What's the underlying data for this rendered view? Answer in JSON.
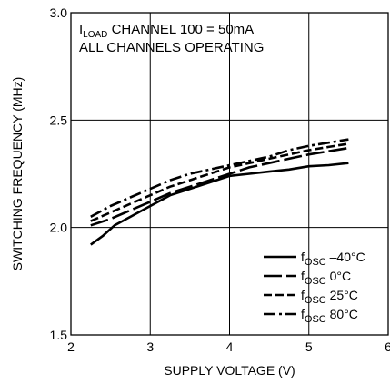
{
  "chart_data": {
    "type": "line",
    "title": "",
    "xlabel": "SUPPLY VOLTAGE (V)",
    "ylabel": "SWITCHING FREQUENCY (MHz)",
    "xlim": [
      2,
      6
    ],
    "ylim": [
      1.5,
      3.0
    ],
    "x_ticks": [
      "2",
      "3",
      "4",
      "5",
      "6"
    ],
    "y_ticks": [
      "1.5",
      "2.0",
      "2.5",
      "3.0"
    ],
    "grid": true,
    "legend_position": "bottom-right",
    "annotation": {
      "line1_main": "I",
      "line1_sub": "LOAD",
      "line1_rest": " CHANNEL 100 = 50mA",
      "line2": "ALL CHANNELS OPERATING"
    },
    "series": [
      {
        "name": "fOSC –40°C",
        "name_main": "f",
        "name_sub": "OSC",
        "name_rest": " –40°C",
        "dash": "solid",
        "x": [
          2.25,
          2.4,
          2.55,
          2.65,
          2.8,
          3.0,
          3.25,
          3.5,
          3.75,
          4.0,
          4.25,
          4.5,
          4.75,
          5.0,
          5.25,
          5.5
        ],
        "y": [
          1.92,
          1.96,
          2.01,
          2.03,
          2.06,
          2.1,
          2.15,
          2.18,
          2.21,
          2.24,
          2.25,
          2.26,
          2.27,
          2.285,
          2.29,
          2.3
        ]
      },
      {
        "name": "fOSC 0°C",
        "name_main": "f",
        "name_sub": "OSC",
        "name_rest": " 0°C",
        "dash": "long-dash",
        "x": [
          2.25,
          2.5,
          2.75,
          3.0,
          3.25,
          3.5,
          3.75,
          4.0,
          4.25,
          4.5,
          4.75,
          5.0,
          5.25,
          5.5
        ],
        "y": [
          2.01,
          2.04,
          2.08,
          2.12,
          2.16,
          2.19,
          2.22,
          2.25,
          2.28,
          2.3,
          2.32,
          2.34,
          2.355,
          2.37
        ]
      },
      {
        "name": "fOSC 25°C",
        "name_main": "f",
        "name_sub": "OSC",
        "name_rest": " 25°C",
        "dash": "short-dash",
        "x": [
          2.25,
          2.5,
          2.75,
          3.0,
          3.25,
          3.5,
          3.75,
          4.0,
          4.25,
          4.5,
          4.75,
          5.0,
          5.25,
          5.5
        ],
        "y": [
          2.03,
          2.07,
          2.11,
          2.15,
          2.19,
          2.22,
          2.25,
          2.28,
          2.3,
          2.32,
          2.34,
          2.36,
          2.375,
          2.39
        ]
      },
      {
        "name": "fOSC 80°C",
        "name_main": "f",
        "name_sub": "OSC",
        "name_rest": " 80°C",
        "dash": "dash-dot",
        "x": [
          2.25,
          2.5,
          2.75,
          3.0,
          3.25,
          3.5,
          3.75,
          4.0,
          4.25,
          4.5,
          4.75,
          5.0,
          5.25,
          5.5
        ],
        "y": [
          2.05,
          2.1,
          2.14,
          2.18,
          2.22,
          2.25,
          2.27,
          2.29,
          2.31,
          2.33,
          2.36,
          2.38,
          2.395,
          2.41
        ]
      }
    ]
  }
}
